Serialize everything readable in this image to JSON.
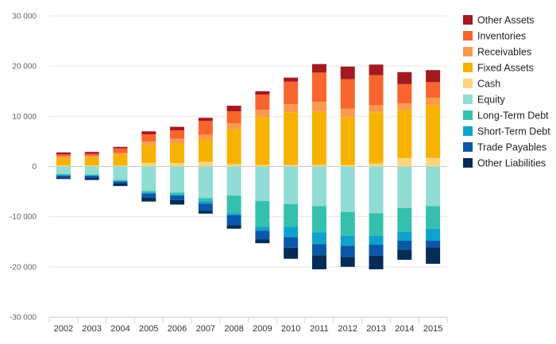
{
  "chart_data": {
    "type": "bar",
    "stacked": true,
    "title": "",
    "xlabel": "",
    "ylabel": "",
    "ylim": [
      -30000,
      30000
    ],
    "yticks": [
      30000,
      20000,
      10000,
      0,
      -10000,
      -20000,
      -30000
    ],
    "ytick_labels": [
      "30 000",
      "20 000",
      "10 000",
      "0",
      "-10 000",
      "-20 000",
      "-30 000"
    ],
    "grid": true,
    "legend_position": "right",
    "categories": [
      "2002",
      "2003",
      "2004",
      "2005",
      "2006",
      "2007",
      "2008",
      "2009",
      "2010",
      "2011",
      "2012",
      "2013",
      "2014",
      "2015"
    ],
    "positive_series": [
      {
        "name": "Cash",
        "color": "#fdd47f",
        "values": [
          200,
          200,
          200,
          700,
          700,
          900,
          500,
          300,
          300,
          300,
          300,
          600,
          1700,
          1700
        ]
      },
      {
        "name": "Fixed Assets",
        "color": "#f7b200",
        "values": [
          1400,
          1500,
          2200,
          3500,
          3900,
          4400,
          6900,
          9500,
          10500,
          10600,
          9500,
          10200,
          9500,
          10500
        ]
      },
      {
        "name": "Receivables",
        "color": "#fb9a4b",
        "values": [
          400,
          400,
          300,
          800,
          900,
          1000,
          1200,
          1500,
          1600,
          2000,
          1700,
          1400,
          1400,
          1500
        ]
      },
      {
        "name": "Inventories",
        "color": "#f9652e",
        "values": [
          400,
          400,
          900,
          1400,
          1700,
          2800,
          2400,
          3000,
          4500,
          5800,
          5900,
          6000,
          3800,
          3100
        ]
      },
      {
        "name": "Other Assets",
        "color": "#a31921",
        "values": [
          400,
          400,
          300,
          600,
          700,
          600,
          1100,
          700,
          800,
          1700,
          2500,
          2100,
          2400,
          2400
        ]
      }
    ],
    "negative_series": [
      {
        "name": "Equity",
        "color": "#91dcd4",
        "values": [
          -1500,
          -1600,
          -2700,
          -4900,
          -5200,
          -6300,
          -5800,
          -6900,
          -7500,
          -7900,
          -9100,
          -9300,
          -8300,
          -7900
        ]
      },
      {
        "name": "Long-Term Debt",
        "color": "#35c0ae",
        "values": [
          -200,
          -200,
          -200,
          -300,
          -400,
          -600,
          -3500,
          -5100,
          -4500,
          -5200,
          -4700,
          -4500,
          -4700,
          -4500
        ]
      },
      {
        "name": "Short-Term Debt",
        "color": "#0fa2cc",
        "values": [
          -100,
          -100,
          -100,
          -200,
          -200,
          -500,
          -400,
          -800,
          -2100,
          -2400,
          -2000,
          -1800,
          -1800,
          -2400
        ]
      },
      {
        "name": "Trade Payables",
        "color": "#0a58a9",
        "values": [
          -400,
          -400,
          -400,
          -800,
          -900,
          -1400,
          -2000,
          -1700,
          -2100,
          -2200,
          -2200,
          -2200,
          -1800,
          -1300
        ]
      },
      {
        "name": "Other Liabilities",
        "color": "#052c57",
        "values": [
          -300,
          -400,
          -500,
          -800,
          -900,
          -600,
          -700,
          -800,
          -2200,
          -2800,
          -2000,
          -2700,
          -2000,
          -3300
        ]
      }
    ],
    "legend": [
      {
        "name": "Other Assets",
        "color": "#a31921"
      },
      {
        "name": "Inventories",
        "color": "#f9652e"
      },
      {
        "name": "Receivables",
        "color": "#fb9a4b"
      },
      {
        "name": "Fixed Assets",
        "color": "#f7b200"
      },
      {
        "name": "Cash",
        "color": "#fdd47f"
      },
      {
        "name": "Equity",
        "color": "#91dcd4"
      },
      {
        "name": "Long-Term Debt",
        "color": "#35c0ae"
      },
      {
        "name": "Short-Term Debt",
        "color": "#0fa2cc"
      },
      {
        "name": "Trade Payables",
        "color": "#0a58a9"
      },
      {
        "name": "Other Liabilities",
        "color": "#052c57"
      }
    ]
  }
}
